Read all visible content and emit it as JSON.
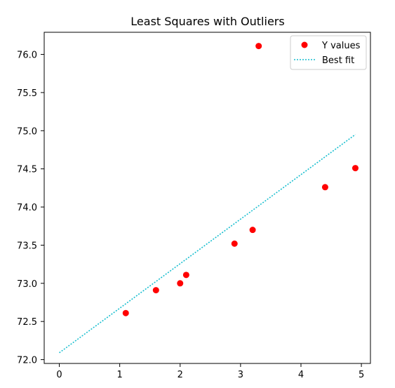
{
  "chart_data": {
    "type": "scatter",
    "title": "Least Squares with Outliers",
    "xlabel": "",
    "ylabel": "",
    "xlim": [
      -0.25,
      5.15
    ],
    "ylim": [
      71.95,
      76.29
    ],
    "xticks": [
      0,
      1,
      2,
      3,
      4,
      5
    ],
    "xtick_labels": [
      "0",
      "1",
      "2",
      "3",
      "4",
      "5"
    ],
    "yticks": [
      72.0,
      72.5,
      73.0,
      73.5,
      74.0,
      74.5,
      75.0,
      75.5,
      76.0
    ],
    "ytick_labels": [
      "72.0",
      "72.5",
      "73.0",
      "73.5",
      "74.0",
      "74.5",
      "75.0",
      "75.5",
      "76.0"
    ],
    "grid": false,
    "legend_position": "top-right",
    "series": [
      {
        "name": "Y values",
        "kind": "scatter",
        "color": "#ff0000",
        "marker": "circle",
        "x": [
          1.1,
          1.6,
          2.0,
          2.1,
          2.9,
          3.2,
          3.3,
          4.4,
          4.9
        ],
        "y": [
          72.61,
          72.91,
          73.0,
          73.11,
          73.52,
          73.7,
          76.11,
          74.26,
          74.51
        ]
      },
      {
        "name": "Best fit",
        "kind": "line",
        "color": "#17becf",
        "linestyle": "dotted",
        "x": [
          0.0,
          4.9
        ],
        "y": [
          72.09,
          74.95
        ]
      }
    ]
  }
}
